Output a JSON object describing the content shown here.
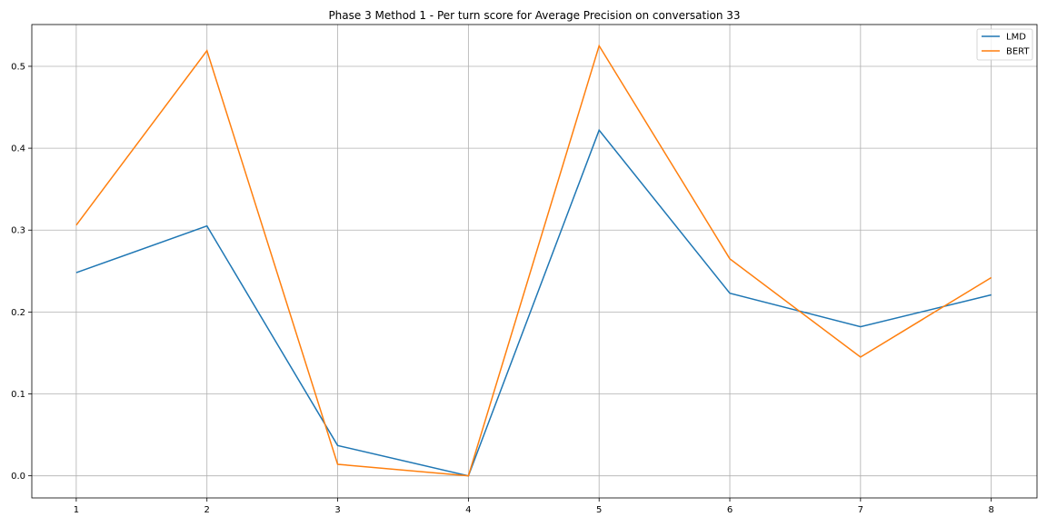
{
  "chart_data": {
    "type": "line",
    "title": "Phase 3 Method 1 - Per turn score for Average Precision on conversation 33",
    "xlabel": "",
    "ylabel": "",
    "x": [
      1,
      2,
      3,
      4,
      5,
      6,
      7,
      8
    ],
    "xticks": [
      1,
      2,
      3,
      4,
      5,
      6,
      7,
      8
    ],
    "yticks": [
      0.0,
      0.1,
      0.2,
      0.3,
      0.4,
      0.5
    ],
    "xlim": [
      0.66,
      8.35
    ],
    "ylim": [
      -0.027,
      0.551
    ],
    "grid": true,
    "legend_position": "top-right",
    "series": [
      {
        "name": "LMD",
        "color": "#1f77b4",
        "values": [
          0.248,
          0.305,
          0.037,
          0.0,
          0.422,
          0.223,
          0.182,
          0.221
        ]
      },
      {
        "name": "BERT",
        "color": "#ff7f0e",
        "values": [
          0.306,
          0.519,
          0.014,
          0.0,
          0.525,
          0.265,
          0.145,
          0.242
        ]
      }
    ]
  }
}
